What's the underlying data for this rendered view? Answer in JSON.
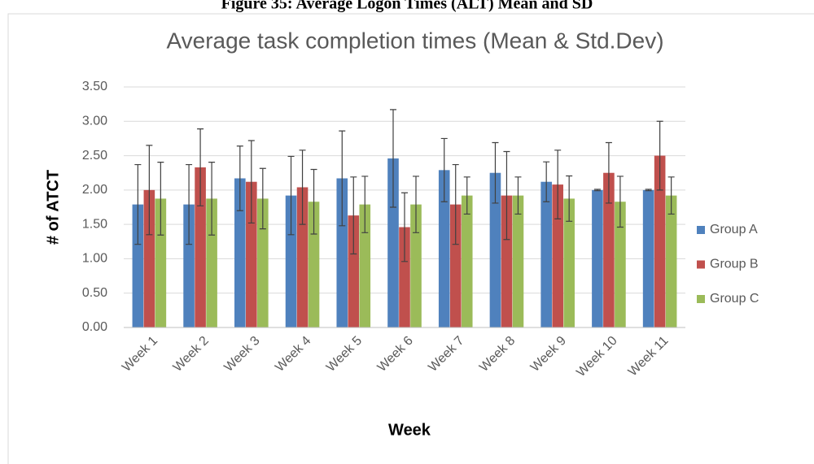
{
  "caption": "Figure 35: Average Logon Times (ALT) Mean and SD",
  "chart_data": {
    "type": "bar",
    "title": "Average task completion times (Mean & Std.Dev)",
    "y_label": "# of ATCT",
    "x_label": "Week",
    "categories": [
      "Week 1",
      "Week 2",
      "Week 3",
      "Week 4",
      "Week 5",
      "Week 6",
      "Week 7",
      "Week 8",
      "Week 9",
      "Week 10",
      "Week 11"
    ],
    "series": [
      {
        "name": "Group A",
        "color": "#4f81bd",
        "values": [
          1.79,
          1.79,
          2.17,
          1.92,
          2.17,
          2.46,
          2.29,
          2.25,
          2.12,
          2.0,
          2.0
        ],
        "errors": [
          0.58,
          0.58,
          0.47,
          0.57,
          0.69,
          0.71,
          0.46,
          0.44,
          0.29,
          0.01,
          0.01
        ]
      },
      {
        "name": "Group B",
        "color": "#c0504d",
        "values": [
          2.0,
          2.33,
          2.12,
          2.04,
          1.63,
          1.46,
          1.79,
          1.92,
          2.08,
          2.25,
          2.5
        ],
        "errors": [
          0.65,
          0.56,
          0.6,
          0.54,
          0.56,
          0.5,
          0.58,
          0.64,
          0.5,
          0.44,
          0.5
        ]
      },
      {
        "name": "Group C",
        "color": "#9bbb59",
        "values": [
          1.875,
          1.875,
          1.875,
          1.83,
          1.79,
          1.79,
          1.92,
          1.92,
          1.875,
          1.83,
          1.92
        ],
        "errors": [
          0.53,
          0.53,
          0.44,
          0.47,
          0.41,
          0.41,
          0.27,
          0.27,
          0.33,
          0.37,
          0.27
        ]
      }
    ],
    "ylim": [
      0,
      3.5
    ],
    "yticks": [
      {
        "value": 0,
        "label": "0.00"
      },
      {
        "value": 0.5,
        "label": "0.50"
      },
      {
        "value": 1,
        "label": "1.00"
      },
      {
        "value": 1.5,
        "label": "1.50"
      },
      {
        "value": 2,
        "label": "2.00"
      },
      {
        "value": 2.5,
        "label": "2.50"
      },
      {
        "value": 3,
        "label": "3.00"
      },
      {
        "value": 3.5,
        "label": "3.50"
      }
    ],
    "grid": true,
    "legend": "right"
  }
}
